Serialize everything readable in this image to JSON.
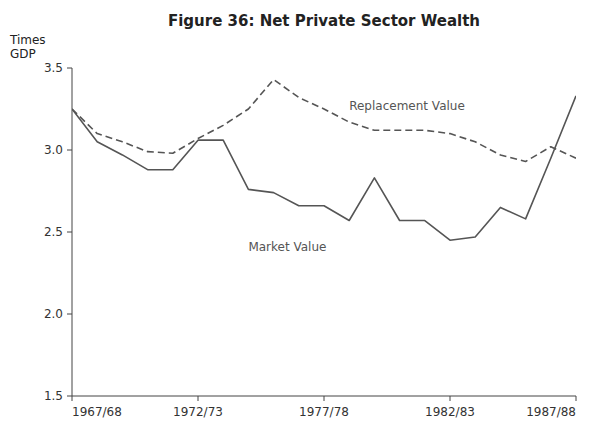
{
  "chart_data": {
    "type": "line",
    "title": "Figure 36: Net Private Sector Wealth",
    "ylabel": "Times\nGDP",
    "categories": [
      "1967/68",
      null,
      null,
      null,
      null,
      "1972/73",
      null,
      null,
      null,
      null,
      "1977/78",
      null,
      null,
      null,
      null,
      "1982/83",
      null,
      null,
      null,
      null,
      "1987/88"
    ],
    "series": [
      {
        "name": "Replacement Value",
        "color": "#555555",
        "line_style": "dashed",
        "values": [
          3.25,
          3.1,
          3.05,
          2.99,
          2.98,
          3.07,
          3.15,
          3.25,
          3.43,
          3.32,
          3.25,
          3.17,
          3.12,
          3.12,
          3.12,
          3.1,
          3.05,
          2.97,
          2.93,
          3.02,
          2.95
        ]
      },
      {
        "name": "Market Value",
        "color": "#555555",
        "line_style": "solid",
        "values": [
          3.25,
          3.05,
          2.97,
          2.88,
          2.88,
          3.06,
          3.06,
          2.76,
          2.74,
          2.66,
          2.66,
          2.57,
          2.83,
          2.57,
          2.57,
          2.45,
          2.47,
          2.65,
          2.58,
          2.95,
          3.33
        ]
      }
    ],
    "ylim": [
      1.5,
      3.5
    ],
    "yticks": [
      1.5,
      {
        "value": 2.0,
        "label": "2.0"
      },
      2.5,
      {
        "value": 3.0,
        "label": "3.0"
      },
      3.5
    ],
    "grid": false
  }
}
